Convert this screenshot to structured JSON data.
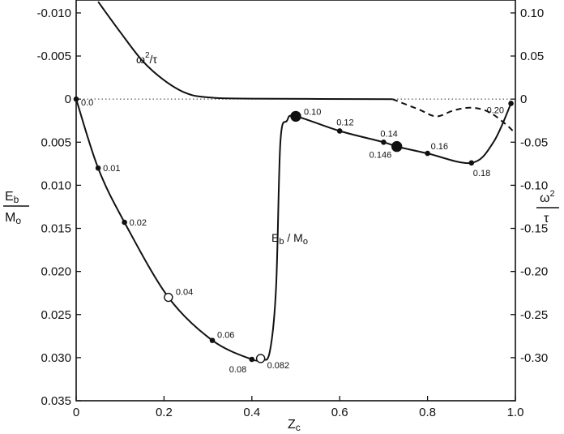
{
  "chart_data": {
    "type": "line",
    "x_axis": {
      "label": "Z",
      "label_sub": "c",
      "range": [
        0,
        1.0
      ],
      "ticks": [
        0,
        0.2,
        0.4,
        0.6,
        0.8,
        1.0
      ],
      "tick_labels": [
        "0",
        "0.2",
        "0.4",
        "0.6",
        "0.8",
        "1.0"
      ]
    },
    "y_left": {
      "label_top": "E",
      "label_top_sub": "b",
      "label_bottom": "M",
      "label_bottom_sub": "o",
      "range": [
        -0.0115,
        0.035
      ],
      "inverted": true,
      "ticks": [
        -0.01,
        -0.005,
        0,
        0.005,
        0.01,
        0.015,
        0.02,
        0.025,
        0.03,
        0.035
      ],
      "tick_labels": [
        "-0.010",
        "-0.005",
        "0",
        "0.005",
        "0.010",
        "0.015",
        "0.020",
        "0.025",
        "0.030",
        "0.035"
      ]
    },
    "y_right": {
      "label_top": "ω",
      "label_top_sup": "2",
      "label_bottom": "τ",
      "range": [
        0.115,
        -0.35
      ],
      "ticks": [
        0.1,
        0.05,
        0,
        -0.05,
        -0.1,
        -0.15,
        -0.2,
        -0.25,
        -0.3,
        -0.35
      ],
      "tick_labels": [
        "0.10",
        "0.05",
        "0",
        "-0.05",
        "-0.10",
        "-0.15",
        "-0.20",
        "-0.25",
        "-0.30",
        ""
      ]
    },
    "series": [
      {
        "name": "E_b/M_o",
        "label_main": "E",
        "label_sub1": "b",
        "label_mid": " / M",
        "label_sub2": "o",
        "axis": "left",
        "style": "solid",
        "x": [
          0,
          0.05,
          0.11,
          0.21,
          0.31,
          0.4,
          0.42,
          0.44,
          0.455,
          0.465,
          0.48,
          0.5,
          0.6,
          0.7,
          0.73,
          0.8,
          0.9,
          0.95,
          0.99
        ],
        "y": [
          0,
          0.008,
          0.0143,
          0.023,
          0.028,
          0.0302,
          0.0301,
          0.0295,
          0.022,
          0.005,
          0.0025,
          0.002,
          0.0037,
          0.005,
          0.0055,
          0.0063,
          0.0074,
          0.005,
          0.0005
        ]
      },
      {
        "name": "ω²/τ",
        "label_main": "ω",
        "label_sup": "2",
        "label_rest": "/τ",
        "axis": "right",
        "style": "solid",
        "x": [
          0.05,
          0.1,
          0.15,
          0.2,
          0.25,
          0.3,
          0.4,
          0.72
        ],
        "y": [
          0.113,
          0.078,
          0.045,
          0.022,
          0.007,
          0.002,
          0.0005,
          0
        ]
      },
      {
        "name": "ω²/τ (dashed)",
        "axis": "right",
        "style": "dashed",
        "x": [
          0.72,
          0.78,
          0.82,
          0.86,
          0.9,
          0.94,
          0.98,
          1.0
        ],
        "y": [
          0,
          -0.012,
          -0.02,
          -0.013,
          -0.01,
          -0.015,
          -0.03,
          -0.04
        ]
      }
    ],
    "annotated_points": [
      {
        "x": 0.0,
        "y": 0.0,
        "label": "0.0",
        "marker": "small",
        "dx": 6,
        "dy": 8
      },
      {
        "x": 0.05,
        "y": 0.008,
        "label": "0.01",
        "marker": "small",
        "dx": 6,
        "dy": 4
      },
      {
        "x": 0.11,
        "y": 0.0143,
        "label": "0.02",
        "marker": "small",
        "dx": 6,
        "dy": 4
      },
      {
        "x": 0.21,
        "y": 0.023,
        "label": "0.04",
        "marker": "open",
        "dx": 9,
        "dy": -3
      },
      {
        "x": 0.31,
        "y": 0.028,
        "label": "0.06",
        "marker": "small",
        "dx": 6,
        "dy": -3
      },
      {
        "x": 0.4,
        "y": 0.0302,
        "label": "0.08",
        "marker": "small",
        "dx": -28,
        "dy": 16
      },
      {
        "x": 0.42,
        "y": 0.0301,
        "label": "0.082",
        "marker": "open",
        "dx": 8,
        "dy": 12
      },
      {
        "x": 0.5,
        "y": 0.002,
        "label": "0.10",
        "marker": "large",
        "dx": 10,
        "dy": -2
      },
      {
        "x": 0.6,
        "y": 0.0037,
        "label": "0.12",
        "marker": "small",
        "dx": -4,
        "dy": -7
      },
      {
        "x": 0.7,
        "y": 0.005,
        "label": "0.14",
        "marker": "small",
        "dx": -4,
        "dy": -7
      },
      {
        "x": 0.73,
        "y": 0.0055,
        "label": "0.146",
        "marker": "large",
        "dx": -34,
        "dy": 14
      },
      {
        "x": 0.8,
        "y": 0.0063,
        "label": "0.16",
        "marker": "small",
        "dx": 4,
        "dy": -5
      },
      {
        "x": 0.9,
        "y": 0.0074,
        "label": "0.18",
        "marker": "small",
        "dx": 2,
        "dy": 16
      },
      {
        "x": 0.99,
        "y": 0.0005,
        "label": "0.20",
        "marker": "small",
        "dx": -30,
        "dy": 12
      }
    ],
    "zero_line": {
      "y": 0,
      "style": "dotted"
    }
  }
}
